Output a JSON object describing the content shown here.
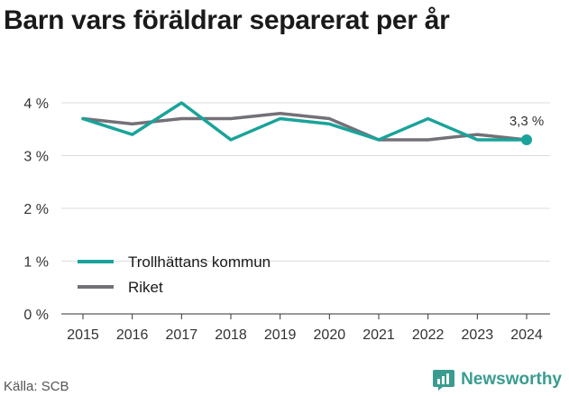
{
  "title": "Barn vars föräldrar separerat per år",
  "source": "Källa: SCB",
  "brand": "Newsworthy",
  "colors": {
    "trollhattan": "#1aa39a",
    "riket": "#747078",
    "brand": "#3a9c90"
  },
  "chart_data": {
    "type": "line",
    "x": [
      "2015",
      "2016",
      "2017",
      "2018",
      "2019",
      "2020",
      "2021",
      "2022",
      "2023",
      "2024"
    ],
    "series": [
      {
        "name": "Trollhättans kommun",
        "values": [
          3.7,
          3.4,
          4.0,
          3.3,
          3.7,
          3.6,
          3.3,
          3.7,
          3.3,
          3.3
        ]
      },
      {
        "name": "Riket",
        "values": [
          3.7,
          3.6,
          3.7,
          3.7,
          3.8,
          3.7,
          3.3,
          3.3,
          3.4,
          3.3
        ]
      }
    ],
    "ylim": [
      0,
      4
    ],
    "yticks": [
      {
        "value": 0,
        "label": "0 %"
      },
      {
        "value": 1,
        "label": "1 %"
      },
      {
        "value": 2,
        "label": "2 %"
      },
      {
        "value": 3,
        "label": "3 %"
      },
      {
        "value": 4,
        "label": "4 %"
      }
    ],
    "end_label": "3,3 %",
    "grid": true,
    "legend_position": "bottom-left"
  }
}
